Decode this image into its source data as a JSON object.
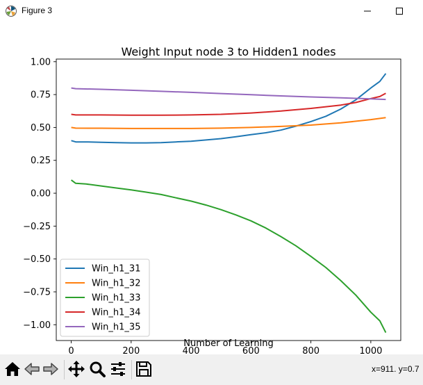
{
  "window": {
    "title": "Figure 3",
    "icons": {
      "app": "matplotlib-icon",
      "minimize": "minimize-icon",
      "maximize": "maximize-icon"
    }
  },
  "toolbar": {
    "buttons": [
      {
        "name": "home-icon"
      },
      {
        "name": "back-arrow-icon"
      },
      {
        "name": "forward-arrow-icon"
      },
      {
        "name": "pan-icon"
      },
      {
        "name": "zoom-icon"
      },
      {
        "name": "configure-subplots-icon"
      },
      {
        "name": "save-icon"
      }
    ],
    "coordinates": "x=911. y=0.7"
  },
  "chart_data": {
    "type": "line",
    "title": "Weight Input node 3 to Hidden1 nodes",
    "xlabel": "Number of Learning",
    "ylabel": "",
    "xlim": [
      -50,
      1100
    ],
    "ylim": [
      -1.12,
      1.02
    ],
    "xticks": [
      0,
      200,
      400,
      600,
      800,
      1000
    ],
    "xtick_labels": [
      "0",
      "200",
      "400",
      "600",
      "800",
      "1000"
    ],
    "yticks": [
      -1.0,
      -0.75,
      -0.5,
      -0.25,
      0.0,
      0.25,
      0.5,
      0.75,
      1.0
    ],
    "ytick_labels": [
      "−1.00",
      "−0.75",
      "−0.50",
      "−0.25",
      "0.00",
      "0.25",
      "0.50",
      "0.75",
      "1.00"
    ],
    "grid": false,
    "legend_position": "lower-left",
    "series": [
      {
        "name": "Win_h1_31",
        "color": "#1f77b4",
        "x": [
          0,
          15,
          50,
          100,
          150,
          200,
          250,
          300,
          350,
          400,
          450,
          500,
          550,
          600,
          650,
          700,
          750,
          800,
          850,
          900,
          950,
          1000,
          1030,
          1050
        ],
        "y": [
          0.4,
          0.39,
          0.39,
          0.387,
          0.385,
          0.383,
          0.383,
          0.385,
          0.39,
          0.395,
          0.405,
          0.415,
          0.43,
          0.445,
          0.46,
          0.48,
          0.51,
          0.545,
          0.585,
          0.64,
          0.71,
          0.8,
          0.85,
          0.91
        ]
      },
      {
        "name": "Win_h1_32",
        "color": "#ff7f0e",
        "x": [
          0,
          15,
          100,
          200,
          300,
          400,
          500,
          600,
          700,
          800,
          900,
          1000,
          1050
        ],
        "y": [
          0.5,
          0.495,
          0.494,
          0.492,
          0.492,
          0.492,
          0.495,
          0.5,
          0.508,
          0.518,
          0.535,
          0.56,
          0.575
        ]
      },
      {
        "name": "Win_h1_33",
        "color": "#2ca02c",
        "x": [
          0,
          15,
          50,
          100,
          150,
          200,
          250,
          300,
          350,
          400,
          450,
          500,
          550,
          600,
          650,
          700,
          750,
          800,
          850,
          900,
          950,
          1000,
          1030,
          1050
        ],
        "y": [
          0.1,
          0.075,
          0.07,
          0.055,
          0.04,
          0.025,
          0.008,
          -0.01,
          -0.035,
          -0.06,
          -0.09,
          -0.125,
          -0.165,
          -0.21,
          -0.265,
          -0.33,
          -0.4,
          -0.48,
          -0.565,
          -0.665,
          -0.775,
          -0.905,
          -0.97,
          -1.06
        ]
      },
      {
        "name": "Win_h1_34",
        "color": "#d62728",
        "x": [
          0,
          15,
          100,
          200,
          300,
          400,
          500,
          600,
          700,
          800,
          900,
          950,
          1000,
          1030,
          1050
        ],
        "y": [
          0.6,
          0.595,
          0.595,
          0.593,
          0.593,
          0.595,
          0.6,
          0.61,
          0.625,
          0.645,
          0.67,
          0.69,
          0.72,
          0.735,
          0.76
        ]
      },
      {
        "name": "Win_h1_35",
        "color": "#9467bd",
        "x": [
          0,
          15,
          100,
          200,
          300,
          400,
          500,
          600,
          700,
          800,
          900,
          1000,
          1050
        ],
        "y": [
          0.8,
          0.795,
          0.79,
          0.783,
          0.775,
          0.767,
          0.758,
          0.749,
          0.74,
          0.732,
          0.725,
          0.718,
          0.713
        ]
      }
    ]
  }
}
